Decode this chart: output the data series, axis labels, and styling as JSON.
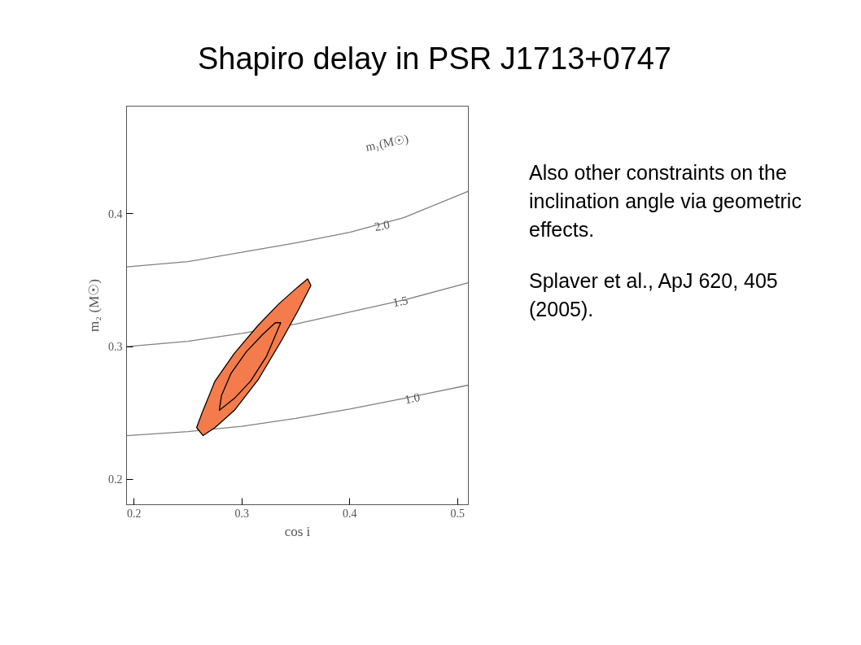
{
  "chart_data": {
    "type": "line",
    "title": "Shapiro delay in PSR J1713+0747",
    "xlabel": "cos i",
    "ylabel": "m₂ (M☉)",
    "xlim": [
      0.193,
      0.51
    ],
    "ylim": [
      0.181,
      0.481
    ],
    "xticks": [
      0.2,
      0.3,
      0.4,
      0.5
    ],
    "yticks": [
      0.2,
      0.3,
      0.4
    ],
    "grid": false,
    "series": [
      {
        "color": "#808080",
        "x": [
          0.193,
          0.25,
          0.3,
          0.35,
          0.4,
          0.45,
          0.51
        ],
        "values": [
          0.36,
          0.364,
          0.371,
          0.378,
          0.386,
          0.397,
          0.417
        ]
      },
      {
        "color": "#808080",
        "x": [
          0.193,
          0.25,
          0.3,
          0.35,
          0.4,
          0.45,
          0.51
        ],
        "values": [
          0.3,
          0.304,
          0.31,
          0.317,
          0.326,
          0.335,
          0.348
        ]
      },
      {
        "color": "#808080",
        "x": [
          0.193,
          0.25,
          0.3,
          0.35,
          0.4,
          0.45,
          0.51
        ],
        "values": [
          0.233,
          0.236,
          0.24,
          0.246,
          0.253,
          0.261,
          0.271
        ]
      },
      {
        "type": "area",
        "color": "#f47c4c",
        "x": [
          0.264,
          0.275,
          0.293,
          0.315,
          0.337,
          0.352,
          0.364,
          0.361,
          0.352,
          0.334,
          0.315,
          0.293,
          0.275,
          0.263,
          0.258,
          0.264
        ],
        "values": [
          0.233,
          0.239,
          0.252,
          0.275,
          0.305,
          0.327,
          0.346,
          0.351,
          0.345,
          0.332,
          0.316,
          0.295,
          0.274,
          0.25,
          0.239,
          0.233
        ]
      },
      {
        "type": "area",
        "color": "#f47c4c",
        "x": [
          0.279,
          0.293,
          0.308,
          0.323,
          0.336,
          0.331,
          0.319,
          0.304,
          0.29,
          0.281,
          0.279
        ],
        "values": [
          0.252,
          0.261,
          0.274,
          0.293,
          0.318,
          0.318,
          0.309,
          0.296,
          0.28,
          0.263,
          0.252
        ]
      }
    ],
    "annotations": [
      "m₁(M☉)",
      {
        "text": "2.0",
        "x": 0.43,
        "y": 0.391
      },
      {
        "text": "1.5",
        "x": 0.447,
        "y": 0.334
      },
      {
        "text": "1.0",
        "x": 0.458,
        "y": 0.261
      },
      "Also other constraints on the inclination angle via geometric effects.",
      "Splaver et al., ApJ 620, 405 (2005)."
    ]
  }
}
